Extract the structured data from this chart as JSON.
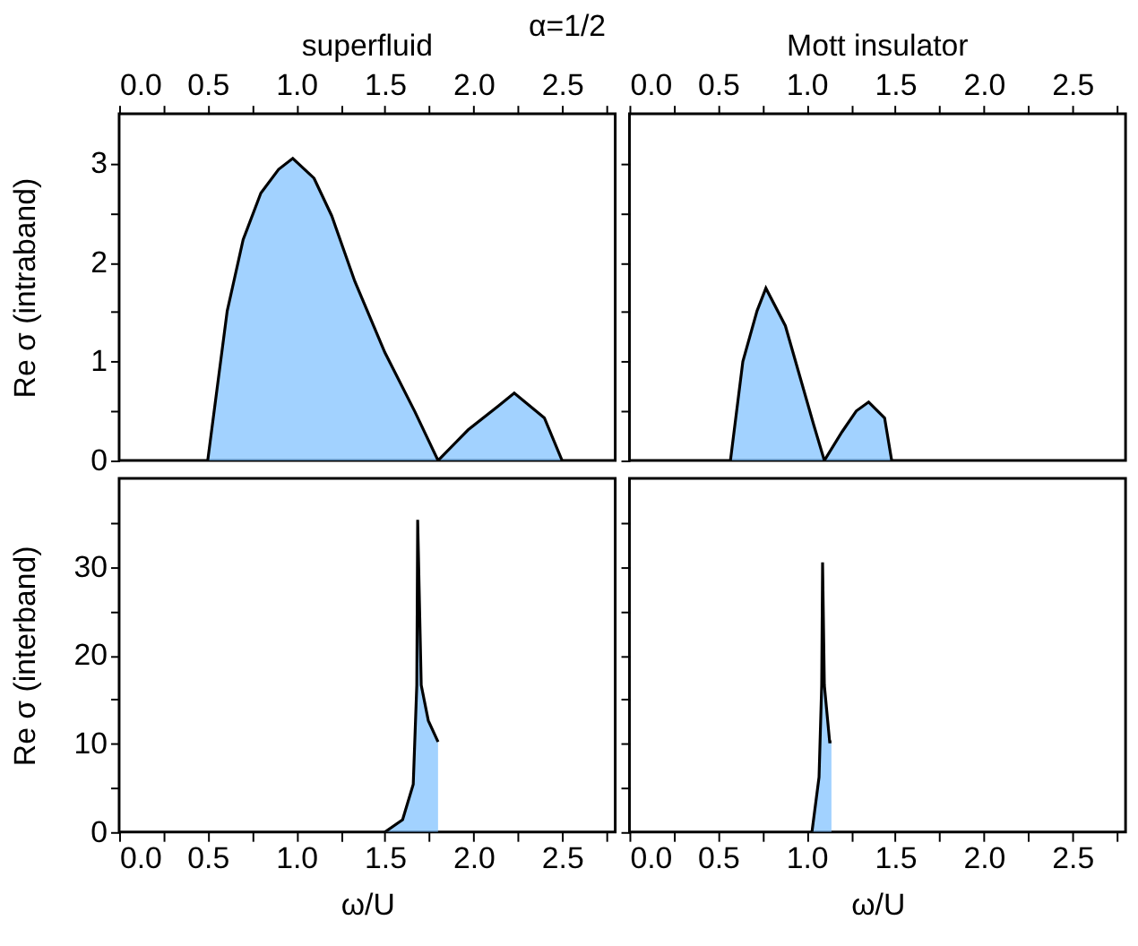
{
  "chart_data": [
    {
      "type": "area",
      "title": "superfluid",
      "annotations": [
        "α=1/2"
      ],
      "ylabel": "Re σ (intraband)",
      "xlim": [
        0,
        2.8
      ],
      "xticks": [
        {
          "value": 0,
          "label": "0.0"
        },
        {
          "value": 0.25,
          "label": null
        },
        0.5,
        {
          "value": 0.75,
          "label": null
        },
        {
          "value": 1,
          "label": "1.0"
        },
        {
          "value": 1.25,
          "label": null
        },
        1.5,
        {
          "value": 1.75,
          "label": null
        },
        {
          "value": 2,
          "label": "2.0"
        },
        {
          "value": 2.25,
          "label": null
        },
        2.5,
        {
          "value": 2.75,
          "label": null
        }
      ],
      "ylim": [
        0,
        3.5
      ],
      "yticks": [
        0,
        {
          "value": 0.5,
          "label": null
        },
        1,
        {
          "value": 1.5,
          "label": null
        },
        2,
        {
          "value": 2.5,
          "label": null
        },
        3
      ],
      "series": [
        {
          "color": "#7abfff",
          "x": [
            0.5,
            0.61,
            0.7,
            0.8,
            0.9,
            0.98,
            1.1,
            1.2,
            1.33,
            1.5,
            1.67,
            1.8,
            1.97,
            2.14,
            2.23,
            2.4,
            2.5
          ],
          "values": [
            0,
            1.51,
            2.23,
            2.7,
            2.94,
            3.05,
            2.85,
            2.47,
            1.81,
            1.09,
            0.49,
            0,
            0.31,
            0.55,
            0.68,
            0.43,
            0
          ]
        }
      ]
    },
    {
      "type": "area",
      "title": "Mott insulator",
      "tick_labels": "x",
      "xlim": [
        0,
        2.8
      ],
      "xticks": [
        {
          "value": 0,
          "label": "0.0"
        },
        {
          "value": 0.25,
          "label": null
        },
        0.5,
        {
          "value": 0.75,
          "label": null
        },
        {
          "value": 1,
          "label": "1.0"
        },
        {
          "value": 1.25,
          "label": null
        },
        1.5,
        {
          "value": 1.75,
          "label": null
        },
        {
          "value": 2,
          "label": "2.0"
        },
        {
          "value": 2.25,
          "label": null
        },
        2.5,
        {
          "value": 2.75,
          "label": null
        }
      ],
      "ylim": [
        0,
        3.5
      ],
      "yticks": [
        0,
        {
          "value": 0.5,
          "label": null
        },
        1,
        {
          "value": 1.5,
          "label": null
        },
        2,
        {
          "value": 2.5,
          "label": null
        },
        3
      ],
      "series": [
        {
          "color": "#7abfff",
          "x": [
            0.57,
            0.64,
            0.72,
            0.77,
            0.88,
            0.96,
            1.04,
            1.1,
            1.2,
            1.28,
            1.35,
            1.44,
            1.48
          ],
          "values": [
            0,
            1.0,
            1.51,
            1.74,
            1.36,
            0.86,
            0.36,
            0,
            0.29,
            0.5,
            0.59,
            0.43,
            0
          ]
        }
      ]
    },
    {
      "type": "area",
      "xlabel": "ω/U",
      "ylabel": "Re σ (interband)",
      "xlim": [
        0,
        2.8
      ],
      "xticks": [
        {
          "value": 0,
          "label": "0.0"
        },
        {
          "value": 0.25,
          "label": null
        },
        0.5,
        {
          "value": 0.75,
          "label": null
        },
        {
          "value": 1,
          "label": "1.0"
        },
        {
          "value": 1.25,
          "label": null
        },
        1.5,
        {
          "value": 1.75,
          "label": null
        },
        {
          "value": 2,
          "label": "2.0"
        },
        {
          "value": 2.25,
          "label": null
        },
        2.5,
        {
          "value": 2.75,
          "label": null
        }
      ],
      "ylim": [
        0,
        40
      ],
      "yticks": [
        0,
        {
          "value": 5,
          "label": null
        },
        10,
        {
          "value": 15,
          "label": null
        },
        20,
        {
          "value": 25,
          "label": null
        },
        30,
        {
          "value": 35,
          "label": null
        }
      ],
      "series": [
        {
          "color": "#7abfff",
          "x": [
            1.5,
            1.6,
            1.66,
            1.68,
            1.685,
            1.705,
            1.745,
            1.8,
            1.8
          ],
          "values": [
            0,
            1.4,
            5.4,
            16.6,
            35.3,
            16.6,
            12.6,
            10.2,
            0
          ]
        }
      ]
    },
    {
      "type": "area",
      "xlabel": "ω/U",
      "tick_labels": "x",
      "xlim": [
        0,
        2.8
      ],
      "xticks": [
        {
          "value": 0,
          "label": "0.0"
        },
        {
          "value": 0.25,
          "label": null
        },
        0.5,
        {
          "value": 0.75,
          "label": null
        },
        {
          "value": 1,
          "label": "1.0"
        },
        {
          "value": 1.25,
          "label": null
        },
        1.5,
        {
          "value": 1.75,
          "label": null
        },
        {
          "value": 2,
          "label": "2.0"
        },
        {
          "value": 2.25,
          "label": null
        },
        2.5,
        {
          "value": 2.75,
          "label": null
        }
      ],
      "ylim": [
        0,
        40
      ],
      "yticks": [
        0,
        {
          "value": 5,
          "label": null
        },
        10,
        {
          "value": 15,
          "label": null
        },
        20,
        {
          "value": 25,
          "label": null
        },
        30,
        {
          "value": 35,
          "label": null
        }
      ],
      "series": [
        {
          "color": "#7abfff",
          "x": [
            1.03,
            1.07,
            1.085,
            1.09,
            1.1,
            1.13,
            1.14,
            1.14
          ],
          "values": [
            0,
            6.2,
            16.6,
            30.5,
            16.6,
            10.2,
            10.2,
            0
          ]
        }
      ]
    }
  ]
}
